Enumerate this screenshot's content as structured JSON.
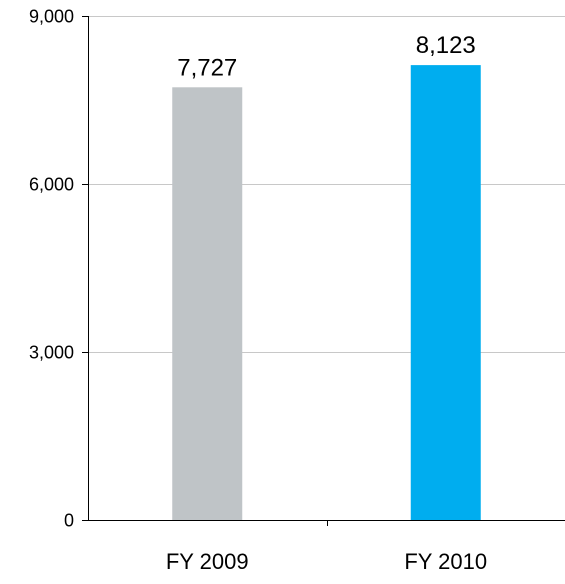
{
  "chart_data": {
    "type": "bar",
    "title": "",
    "xlabel": "",
    "ylabel": "",
    "categories": [
      "FY 2009",
      "FY 2010"
    ],
    "values": [
      7727,
      8123
    ],
    "value_labels": [
      "7,727",
      "8,123"
    ],
    "bar_colors": [
      "#bfc4c7",
      "#00adef"
    ],
    "ylim": [
      0,
      9000
    ],
    "yticks": [
      0,
      3000,
      6000,
      9000
    ],
    "ytick_labels": [
      "0",
      "3,000",
      "6,000",
      "9,000"
    ],
    "grid": true,
    "grid_color": "#c8c8c8",
    "axis_color": "#000000",
    "legend": "none"
  }
}
